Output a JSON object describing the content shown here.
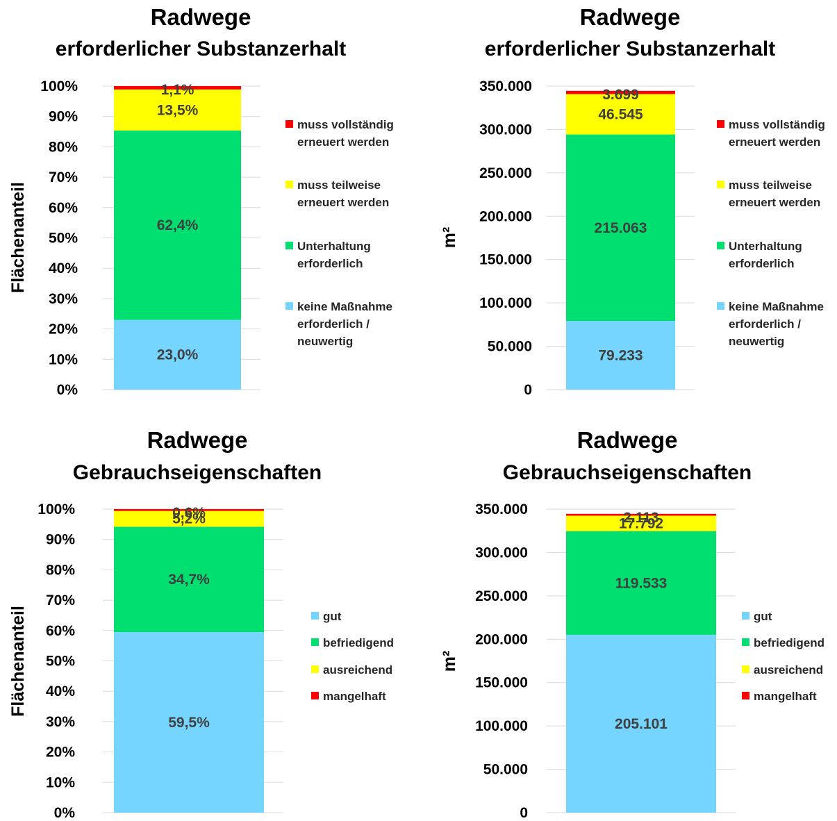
{
  "chart_data": [
    {
      "type": "bar",
      "stacked": true,
      "title": "Radwege",
      "subtitle": "erforderlicher Substanzerhalt",
      "ylabel": "Flächenanteil",
      "ylim": [
        0,
        100
      ],
      "yticks": [
        "0%",
        "10%",
        "20%",
        "30%",
        "40%",
        "50%",
        "60%",
        "70%",
        "80%",
        "90%",
        "100%"
      ],
      "legend_position": "right",
      "series": [
        {
          "name": "keine Maßnahme erforderlich / neuwertig",
          "legend_lines": [
            "keine Maßnahme",
            "erforderlich /",
            "neuwertig"
          ],
          "color": "#75d5ff",
          "value": 23.0,
          "label": "23,0%"
        },
        {
          "name": "Unterhaltung erforderlich",
          "legend_lines": [
            "Unterhaltung",
            "erforderlich"
          ],
          "color": "#00df6f",
          "value": 62.4,
          "label": "62,4%"
        },
        {
          "name": "muss teilweise erneuert werden",
          "legend_lines": [
            "muss teilweise",
            "erneuert werden"
          ],
          "color": "#ffff00",
          "value": 13.5,
          "label": "13,5%"
        },
        {
          "name": "muss vollständig erneuert werden",
          "legend_lines": [
            "muss vollständig",
            "erneuert werden"
          ],
          "color": "#ff0000",
          "value": 1.1,
          "label": "1,1%"
        }
      ]
    },
    {
      "type": "bar",
      "stacked": true,
      "title": "Radwege",
      "subtitle": "erforderlicher Substanzerhalt",
      "ylabel": "m²",
      "ylim": [
        0,
        350000
      ],
      "yticks": [
        "0",
        "50.000",
        "100.000",
        "150.000",
        "200.000",
        "250.000",
        "300.000",
        "350.000"
      ],
      "legend_position": "right",
      "series": [
        {
          "name": "keine Maßnahme erforderlich / neuwertig",
          "legend_lines": [
            "keine Maßnahme",
            "erforderlich /",
            "neuwertig"
          ],
          "color": "#75d5ff",
          "value": 79233,
          "label": "79.233"
        },
        {
          "name": "Unterhaltung erforderlich",
          "legend_lines": [
            "Unterhaltung",
            "erforderlich"
          ],
          "color": "#00df6f",
          "value": 215063,
          "label": "215.063"
        },
        {
          "name": "muss teilweise erneuert werden",
          "legend_lines": [
            "muss teilweise",
            "erneuert werden"
          ],
          "color": "#ffff00",
          "value": 46545,
          "label": "46.545"
        },
        {
          "name": "muss vollständig erneuert werden",
          "legend_lines": [
            "muss vollständig",
            "erneuert werden"
          ],
          "color": "#ff0000",
          "value": 3699,
          "label": "3.699"
        }
      ]
    },
    {
      "type": "bar",
      "stacked": true,
      "title": "Radwege",
      "subtitle": "Gebrauchseigenschaften",
      "ylabel": "Flächenanteil",
      "ylim": [
        0,
        100
      ],
      "yticks": [
        "0%",
        "10%",
        "20%",
        "30%",
        "40%",
        "50%",
        "60%",
        "70%",
        "80%",
        "90%",
        "100%"
      ],
      "legend_position": "right",
      "series": [
        {
          "name": "gut",
          "legend_lines": [
            "gut"
          ],
          "color": "#75d5ff",
          "value": 59.5,
          "label": "59,5%"
        },
        {
          "name": "befriedigend",
          "legend_lines": [
            "befriedigend"
          ],
          "color": "#00df6f",
          "value": 34.7,
          "label": "34,7%"
        },
        {
          "name": "ausreichend",
          "legend_lines": [
            "ausreichend"
          ],
          "color": "#ffff00",
          "value": 5.2,
          "label": "5,2%"
        },
        {
          "name": "mangelhaft",
          "legend_lines": [
            "mangelhaft"
          ],
          "color": "#ff0000",
          "value": 0.6,
          "label": "0,6%"
        }
      ]
    },
    {
      "type": "bar",
      "stacked": true,
      "title": "Radwege",
      "subtitle": "Gebrauchseigenschaften",
      "ylabel": "m²",
      "ylim": [
        0,
        350000
      ],
      "yticks": [
        "0",
        "50.000",
        "100.000",
        "150.000",
        "200.000",
        "250.000",
        "300.000",
        "350.000"
      ],
      "legend_position": "right",
      "series": [
        {
          "name": "gut",
          "legend_lines": [
            "gut"
          ],
          "color": "#75d5ff",
          "value": 205101,
          "label": "205.101"
        },
        {
          "name": "befriedigend",
          "legend_lines": [
            "befriedigend"
          ],
          "color": "#00df6f",
          "value": 119533,
          "label": "119.533"
        },
        {
          "name": "ausreichend",
          "legend_lines": [
            "ausreichend"
          ],
          "color": "#ffff00",
          "value": 17792,
          "label": "17.792"
        },
        {
          "name": "mangelhaft",
          "legend_lines": [
            "mangelhaft"
          ],
          "color": "#ff0000",
          "value": 2113,
          "label": "2.113"
        }
      ]
    }
  ]
}
